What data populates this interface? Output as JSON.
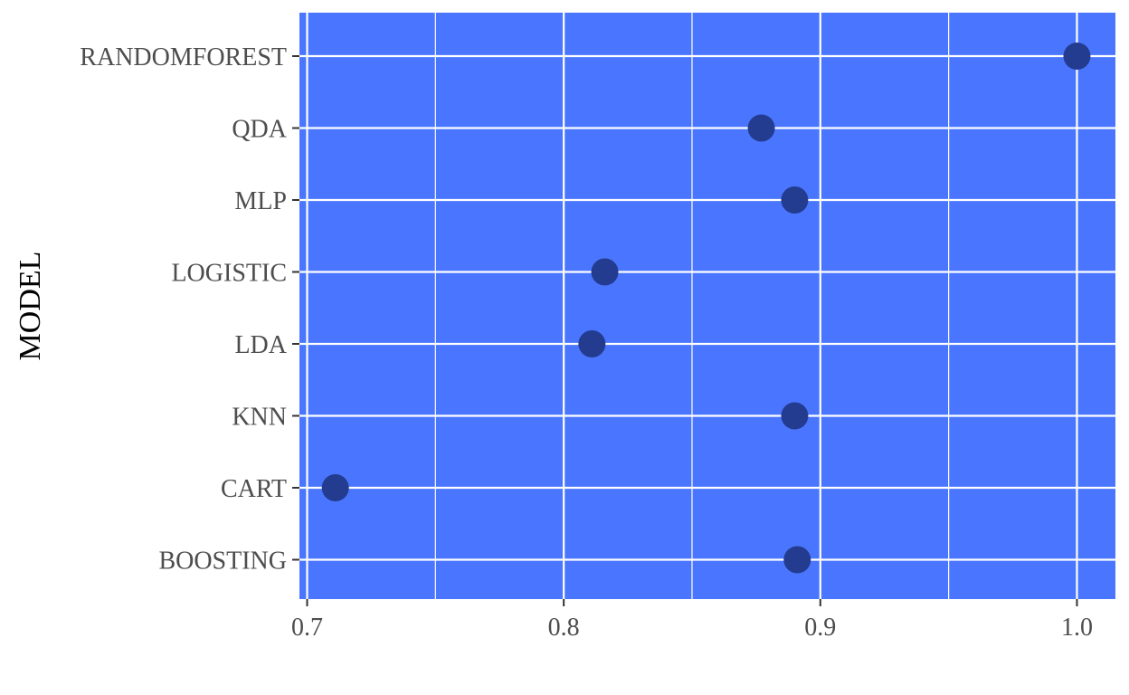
{
  "chart_data": {
    "type": "scatter",
    "title": "",
    "xlabel": "",
    "ylabel": "MODEL",
    "categories": [
      "BOOSTING",
      "CART",
      "KNN",
      "LDA",
      "LOGISTIC",
      "MLP",
      "QDA",
      "RANDOMFOREST"
    ],
    "values": [
      0.891,
      0.711,
      0.89,
      0.811,
      0.816,
      0.89,
      0.877,
      1.0
    ],
    "xlim": [
      0.697,
      1.015
    ],
    "xticks": [
      0.7,
      0.8,
      0.9,
      1.0
    ],
    "xtick_labels": [
      "0.7",
      "0.8",
      "0.9",
      "1.0"
    ],
    "grid": true,
    "legend": "none",
    "colors": {
      "panel": "#4a76ff",
      "grid": "#ffffff",
      "point": "#243c8f"
    }
  }
}
